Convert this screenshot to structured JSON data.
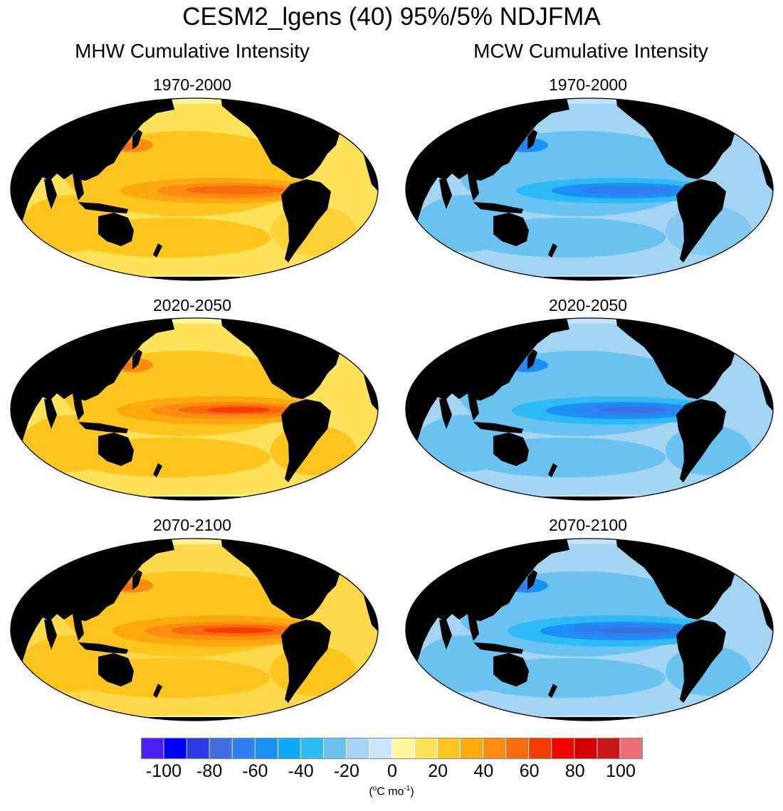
{
  "title": "CESM2_lgens (40) 95%/5% NDJFMA",
  "columns": {
    "left": "MHW Cumulative Intensity",
    "right": "MCW Cumulative Intensity"
  },
  "periods": [
    "1970-2000",
    "2020-2050",
    "2070-2100"
  ],
  "colorbar": {
    "ticks": [
      "-100",
      "-80",
      "-60",
      "-40",
      "-20",
      "0",
      "20",
      "40",
      "60",
      "80",
      "100"
    ],
    "colors": [
      "#4d1ff5",
      "#0000ff",
      "#2a3de8",
      "#3e6ee0",
      "#2f80f0",
      "#1a8ff8",
      "#0aaaf5",
      "#2dbaf5",
      "#6ac2f0",
      "#a3d4f2",
      "#c6e5f8",
      "#fff79c",
      "#fee35a",
      "#fec51f",
      "#fca80f",
      "#fb8c10",
      "#f96a0c",
      "#f83a05",
      "#f70000",
      "#d60000",
      "#c81818",
      "#ee7077"
    ],
    "units_base": "(",
    "units_degree": "o",
    "units_mid": "C mo",
    "units_exp": "-1",
    "units_close": ")"
  },
  "colors": {
    "ocean_warm": "#fee35a",
    "ocean_cool": "#a3d4f2",
    "land": "#ffffff",
    "coast": "#7a7a7a"
  }
}
